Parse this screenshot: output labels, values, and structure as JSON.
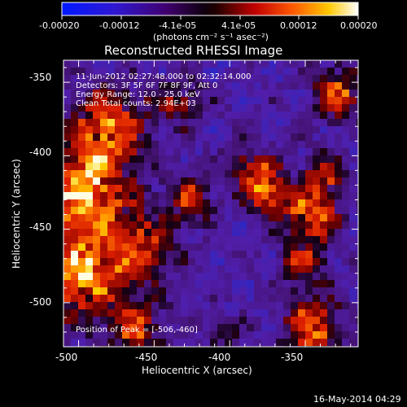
{
  "colorbar": {
    "ticks": [
      "-0.00020",
      "-0.00012",
      "-4.1e-05",
      "4.1e-05",
      "0.00012",
      "0.00020"
    ],
    "unit_label": "(photons cm⁻² s⁻¹ asec⁻²)",
    "colors": [
      "#0020ff",
      "#4020c0",
      "#300040",
      "#000000",
      "#a00000",
      "#ff6000",
      "#ffd000",
      "#ffffff"
    ]
  },
  "plot": {
    "title": "Reconstructed RHESSI Image",
    "xlabel": "Heliocentric X (arcsec)",
    "ylabel": "Heliocentric Y (arcsec)",
    "xticks": [
      "-500",
      "-450",
      "-400",
      "-350"
    ],
    "yticks": [
      "-350",
      "-400",
      "-450",
      "-500"
    ],
    "info": [
      "11-Jun-2012 02:27:48.000 to 02:32:14.000",
      "Detectors: 3F 5F 6F 7F 8F 9F, Att 0",
      "Energy Range: 12.0 - 25.0 keV",
      "Clean     Total counts: 2.94E+03"
    ],
    "peak": "Position of Peak = [-506,-460]"
  },
  "footer": {
    "date": "16-May-2014 04:29"
  },
  "chart_data": {
    "type": "heatmap",
    "title": "Reconstructed RHESSI Image",
    "xlabel": "Heliocentric X (arcsec)",
    "ylabel": "Heliocentric Y (arcsec)",
    "xlim": [
      -510,
      -315
    ],
    "ylim": [
      -530,
      -335
    ],
    "colorbar_range": [
      -0.0002,
      0.0002
    ],
    "grid": false
  }
}
